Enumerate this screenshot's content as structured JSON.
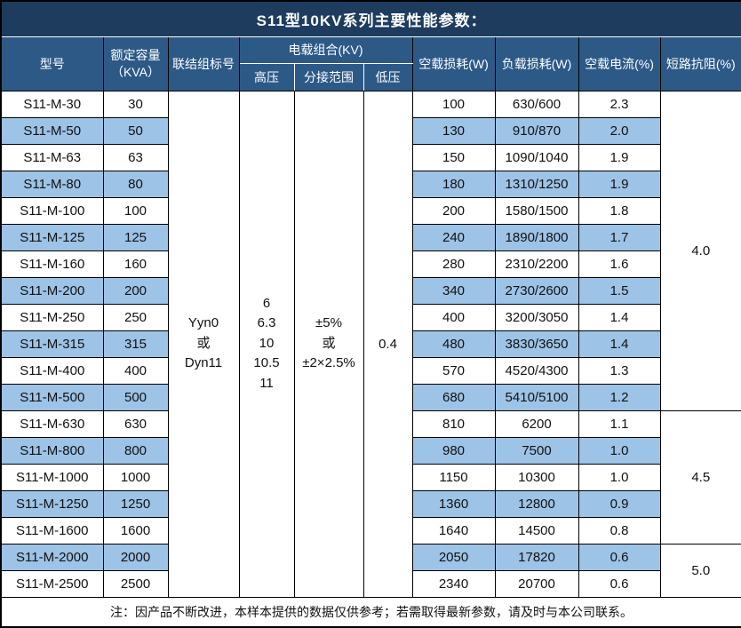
{
  "title": "S11型10KV系列主要性能参数：",
  "colors": {
    "title_bg": "#1e3c5e",
    "header_bg": "#2d5987",
    "stripe_bg": "#9dc3e6",
    "border": "#000000",
    "header_text": "#ffffff",
    "body_text": "#111111"
  },
  "header": {
    "model": "型号",
    "capacity": "额定容量\n（KVA）",
    "connection": "联结组标号",
    "voltage_group": "电载组合(KV)",
    "hv": "高压",
    "tap_range": "分接范围",
    "lv": "低压",
    "no_load_loss": "空载损耗(W)",
    "load_loss": "负载损耗(W)",
    "no_load_current": "空载电流(%)",
    "impedance": "短路抗阻(%)"
  },
  "merged": {
    "connection": "Yyn0\n或\nDyn11",
    "hv": "6\n6.3\n10\n10.5\n11",
    "tap_range": "±5%\n或\n±2×2.5%",
    "lv": "0.4"
  },
  "rows": [
    {
      "model": "S11-M-30",
      "capacity": "30",
      "no_load_loss": "100",
      "load_loss": "630/600",
      "no_load_current": "2.3"
    },
    {
      "model": "S11-M-50",
      "capacity": "50",
      "no_load_loss": "130",
      "load_loss": "910/870",
      "no_load_current": "2.0"
    },
    {
      "model": "S11-M-63",
      "capacity": "63",
      "no_load_loss": "150",
      "load_loss": "1090/1040",
      "no_load_current": "1.9"
    },
    {
      "model": "S11-M-80",
      "capacity": "80",
      "no_load_loss": "180",
      "load_loss": "1310/1250",
      "no_load_current": "1.9"
    },
    {
      "model": "S11-M-100",
      "capacity": "100",
      "no_load_loss": "200",
      "load_loss": "1580/1500",
      "no_load_current": "1.8"
    },
    {
      "model": "S11-M-125",
      "capacity": "125",
      "no_load_loss": "240",
      "load_loss": "1890/1800",
      "no_load_current": "1.7"
    },
    {
      "model": "S11-M-160",
      "capacity": "160",
      "no_load_loss": "280",
      "load_loss": "2310/2200",
      "no_load_current": "1.6"
    },
    {
      "model": "S11-M-200",
      "capacity": "200",
      "no_load_loss": "340",
      "load_loss": "2730/2600",
      "no_load_current": "1.5"
    },
    {
      "model": "S11-M-250",
      "capacity": "250",
      "no_load_loss": "400",
      "load_loss": "3200/3050",
      "no_load_current": "1.4"
    },
    {
      "model": "S11-M-315",
      "capacity": "315",
      "no_load_loss": "480",
      "load_loss": "3830/3650",
      "no_load_current": "1.4"
    },
    {
      "model": "S11-M-400",
      "capacity": "400",
      "no_load_loss": "570",
      "load_loss": "4520/4300",
      "no_load_current": "1.3"
    },
    {
      "model": "S11-M-500",
      "capacity": "500",
      "no_load_loss": "680",
      "load_loss": "5410/5100",
      "no_load_current": "1.2"
    },
    {
      "model": "S11-M-630",
      "capacity": "630",
      "no_load_loss": "810",
      "load_loss": "6200",
      "no_load_current": "1.1"
    },
    {
      "model": "S11-M-800",
      "capacity": "800",
      "no_load_loss": "980",
      "load_loss": "7500",
      "no_load_current": "1.0"
    },
    {
      "model": "S11-M-1000",
      "capacity": "1000",
      "no_load_loss": "1150",
      "load_loss": "10300",
      "no_load_current": "1.0"
    },
    {
      "model": "S11-M-1250",
      "capacity": "1250",
      "no_load_loss": "1360",
      "load_loss": "12800",
      "no_load_current": "0.9"
    },
    {
      "model": "S11-M-1600",
      "capacity": "1600",
      "no_load_loss": "1640",
      "load_loss": "14500",
      "no_load_current": "0.8"
    },
    {
      "model": "S11-M-2000",
      "capacity": "2000",
      "no_load_loss": "2050",
      "load_loss": "17820",
      "no_load_current": "0.6"
    },
    {
      "model": "S11-M-2500",
      "capacity": "2500",
      "no_load_loss": "2340",
      "load_loss": "20700",
      "no_load_current": "0.6"
    }
  ],
  "impedance_groups": [
    {
      "value": "4.0",
      "rows": 12
    },
    {
      "value": "4.5",
      "rows": 5
    },
    {
      "value": "5.0",
      "rows": 2
    }
  ],
  "note": "注：因产品不断改进，本样本提供的数据仅供参考；若需取得最新参数，请及时与本公司联系。"
}
